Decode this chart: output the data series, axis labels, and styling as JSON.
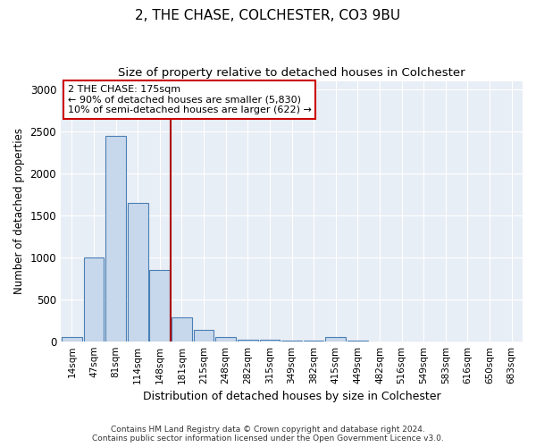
{
  "title": "2, THE CHASE, COLCHESTER, CO3 9BU",
  "subtitle": "Size of property relative to detached houses in Colchester",
  "xlabel": "Distribution of detached houses by size in Colchester",
  "ylabel": "Number of detached properties",
  "categories": [
    "14sqm",
    "47sqm",
    "81sqm",
    "114sqm",
    "148sqm",
    "181sqm",
    "215sqm",
    "248sqm",
    "282sqm",
    "315sqm",
    "349sqm",
    "382sqm",
    "415sqm",
    "449sqm",
    "482sqm",
    "516sqm",
    "549sqm",
    "583sqm",
    "616sqm",
    "650sqm",
    "683sqm"
  ],
  "values": [
    50,
    1000,
    2450,
    1650,
    850,
    280,
    130,
    50,
    20,
    15,
    8,
    5,
    50,
    5,
    0,
    0,
    0,
    0,
    0,
    0,
    0
  ],
  "bar_color": "#c8d8ec",
  "bar_edge_color": "#4a7fb5",
  "vline_color": "#aa0000",
  "annotation_text": "2 THE CHASE: 175sqm\n← 90% of detached houses are smaller (5,830)\n10% of semi-detached houses are larger (622) →",
  "annotation_box_color": "#ffffff",
  "annotation_box_edge_color": "#cc0000",
  "ylim": [
    0,
    3100
  ],
  "yticks": [
    0,
    500,
    1000,
    1500,
    2000,
    2500,
    3000
  ],
  "footer_text": "Contains HM Land Registry data © Crown copyright and database right 2024.\nContains public sector information licensed under the Open Government Licence v3.0.",
  "background_color": "#ffffff",
  "plot_bg_color": "#e8eef5",
  "grid_color": "#ffffff",
  "title_fontsize": 11,
  "subtitle_fontsize": 9.5
}
